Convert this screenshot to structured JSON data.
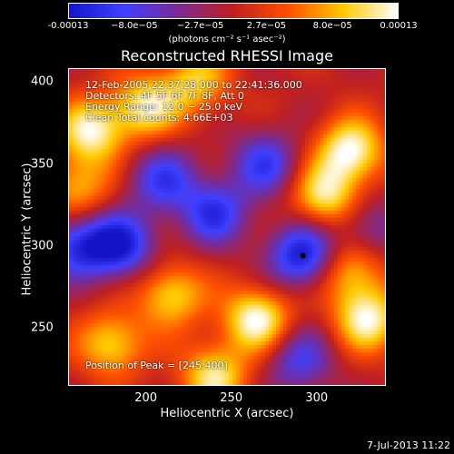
{
  "colorbar": {
    "ticks": [
      "-0.00013",
      "−8.0e−05",
      "−2.7e−05",
      "2.7e−05",
      "8.0e−05",
      "0.00013"
    ],
    "units": "(photons cm⁻² s⁻¹ asec⁻²)",
    "range": [
      -0.00013,
      0.00013
    ],
    "colors": [
      "#1515c8",
      "#4040ff",
      "#7a2a90",
      "#c02020",
      "#ff5000",
      "#ffc800",
      "#ffffff"
    ]
  },
  "chart_data": {
    "type": "heatmap",
    "title": "Reconstructed RHESSI Image",
    "xlabel": "Heliocentric X (arcsec)",
    "ylabel": "Heliocentric Y (arcsec)",
    "xlim": [
      155,
      340
    ],
    "ylim": [
      215,
      408
    ],
    "xticks": [
      "200",
      "250",
      "300"
    ],
    "yticks": [
      "250",
      "300",
      "350",
      "400"
    ],
    "annotations": {
      "time": "12-Feb-2005 22:37:28.000 to 22:41:36.000",
      "detectors": "Detectors: 4F 5F 6F 7F 8F, Att 0",
      "energy": "Energy Range: 12.0 − 25.0 keV",
      "method": "Clean     Total counts: 4.66E+03",
      "peak": "Position of Peak = [245,400]"
    },
    "marker": {
      "x": 292,
      "y": 294
    },
    "bright_sources": [
      {
        "x": 168,
        "y": 370,
        "value": 0.00012
      },
      {
        "x": 200,
        "y": 385,
        "value": 0.00011
      },
      {
        "x": 320,
        "y": 358,
        "value": 0.00013
      },
      {
        "x": 305,
        "y": 330,
        "value": 0.00011
      },
      {
        "x": 265,
        "y": 255,
        "value": 0.00013
      },
      {
        "x": 215,
        "y": 270,
        "value": 0.0001
      },
      {
        "x": 330,
        "y": 255,
        "value": 0.00012
      },
      {
        "x": 180,
        "y": 240,
        "value": 0.0001
      },
      {
        "x": 240,
        "y": 220,
        "value": 0.00011
      },
      {
        "x": 320,
        "y": 285,
        "value": 9e-05
      },
      {
        "x": 160,
        "y": 335,
        "value": 8e-05
      },
      {
        "x": 230,
        "y": 400,
        "value": 9e-05
      }
    ],
    "dark_sources": [
      {
        "x": 185,
        "y": 300,
        "value": -0.00012
      },
      {
        "x": 240,
        "y": 320,
        "value": -0.0001
      },
      {
        "x": 292,
        "y": 294,
        "value": -0.00013
      },
      {
        "x": 270,
        "y": 350,
        "value": -9e-05
      },
      {
        "x": 210,
        "y": 340,
        "value": -9e-05
      },
      {
        "x": 330,
        "y": 310,
        "value": -6e-05
      },
      {
        "x": 290,
        "y": 230,
        "value": -8e-05
      },
      {
        "x": 160,
        "y": 300,
        "value": -0.0001
      }
    ]
  },
  "footer": {
    "date": "7-Jul-2013 11:22"
  }
}
